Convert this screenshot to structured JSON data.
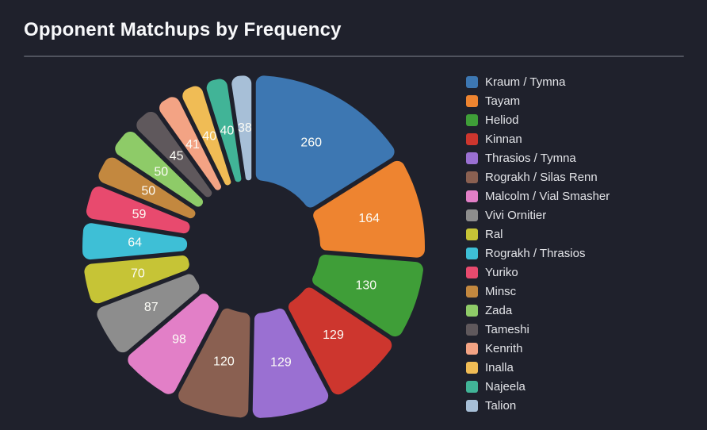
{
  "chart_data": {
    "type": "pie",
    "subtype": "donut-exploded-rounded",
    "title": "Opponent Matchups by Frequency",
    "legend_position": "right",
    "direction": "clockwise",
    "start_angle_deg": 0,
    "labels_shown": "values",
    "categories": [
      "Kraum / Tymna",
      "Tayam",
      "Heliod",
      "Kinnan",
      "Thrasios / Tymna",
      "Rograkh / Silas Renn",
      "Malcolm / Vial Smasher",
      "Vivi Ornitier",
      "Ral",
      "Rograkh / Thrasios",
      "Yuriko",
      "Minsc",
      "Zada",
      "Tameshi",
      "Kenrith",
      "Inalla",
      "Najeela",
      "Talion"
    ],
    "values": [
      260,
      164,
      130,
      129,
      129,
      120,
      98,
      87,
      70,
      64,
      59,
      50,
      50,
      45,
      41,
      40,
      40,
      38
    ],
    "colors": [
      "#3d77b2",
      "#ee8430",
      "#3f9e38",
      "#cd362e",
      "#9a70d2",
      "#8a6051",
      "#e27fc7",
      "#8d8d8d",
      "#c6c436",
      "#3ebfd6",
      "#e84a6e",
      "#c3883f",
      "#8ecb68",
      "#5f585c",
      "#f3a384",
      "#f0bc55",
      "#41b497",
      "#a7bfd7"
    ]
  },
  "theme": {
    "background": "#1f212c",
    "title_color": "#f7f8fa",
    "divider_color": "#50535e",
    "slice_label_color": "#fcfcf6",
    "legend_text_color": "#e3e4e8"
  }
}
